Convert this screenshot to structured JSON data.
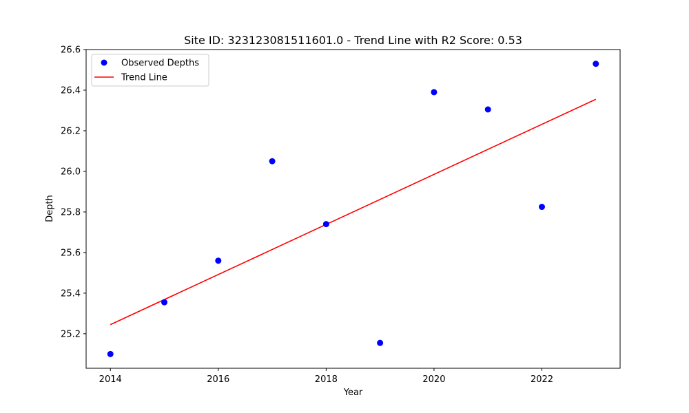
{
  "chart_data": {
    "type": "scatter",
    "title": "Site ID: 323123081511601.0 - Trend Line with R2 Score: 0.53",
    "xlabel": "Year",
    "ylabel": "Depth",
    "xlim": [
      2013.55,
      2023.45
    ],
    "ylim": [
      25.03,
      26.6
    ],
    "xticks": [
      2014,
      2016,
      2018,
      2020,
      2022
    ],
    "yticks": [
      25.2,
      25.4,
      25.6,
      25.8,
      26.0,
      26.2,
      26.4,
      26.6
    ],
    "xtick_labels": [
      "2014",
      "2016",
      "2018",
      "2020",
      "2022"
    ],
    "ytick_labels": [
      "25.2",
      "25.4",
      "25.6",
      "25.8",
      "26.0",
      "26.2",
      "26.4",
      "26.6"
    ],
    "grid": false,
    "legend_position": "top-left",
    "series": [
      {
        "name": "Observed Depths",
        "kind": "scatter",
        "color": "#0000ff",
        "x": [
          2014,
          2015,
          2016,
          2017,
          2018,
          2019,
          2020,
          2021,
          2022,
          2023
        ],
        "y": [
          25.1,
          25.355,
          25.56,
          26.05,
          25.74,
          25.155,
          26.39,
          26.305,
          25.825,
          26.53
        ]
      },
      {
        "name": "Trend Line",
        "kind": "line",
        "color": "#ff0000",
        "x": [
          2014,
          2023
        ],
        "y": [
          25.245,
          26.355
        ]
      }
    ]
  }
}
